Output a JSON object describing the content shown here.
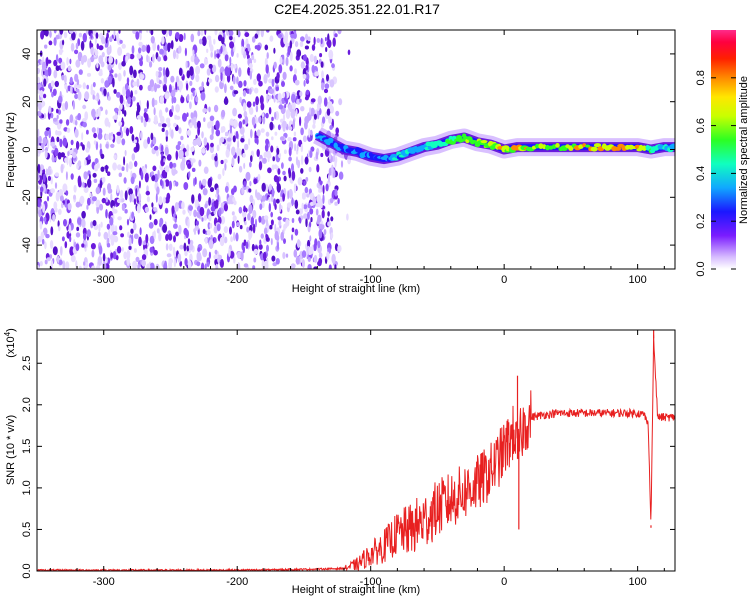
{
  "page": {
    "title": "C2E4.2025.351.22.01.R17"
  },
  "colors": {
    "spectrogram_base": "#6a1bdc",
    "spectrogram_light": "#d8c6ff",
    "snr_line": "#e82020",
    "colorbar_stops": [
      "#ffffff",
      "#c9a7ff",
      "#7a1cff",
      "#0a18ff",
      "#14c8ff",
      "#12ff8a",
      "#7dff0a",
      "#f7ff00",
      "#ffb000",
      "#ff2a00",
      "#ff0030",
      "#ff1b78"
    ]
  },
  "chart_data": [
    {
      "type": "heatmap",
      "name": "spectrogram",
      "title": "C2E4.2025.351.22.01.R17",
      "xlabel": "Height of straight line (km)",
      "ylabel": "Frequency (Hz)",
      "xlim": [
        -350,
        128
      ],
      "ylim": [
        -50,
        50
      ],
      "x_ticks": [
        -300,
        -200,
        -100,
        0,
        100
      ],
      "x_tick_labels": [
        "-300",
        "-200",
        "-100",
        "0",
        "100"
      ],
      "y_ticks": [
        -40,
        -20,
        0,
        20,
        40
      ],
      "y_tick_labels": [
        "-40",
        "-20",
        "0",
        "20",
        "40"
      ],
      "noise_region": {
        "x_from": -350,
        "x_to": -125,
        "freq_from": -50,
        "freq_to": 50
      },
      "signal_trace": {
        "x": [
          -140,
          -130,
          -120,
          -110,
          -100,
          -90,
          -80,
          -70,
          -60,
          -50,
          -40,
          -30,
          -20,
          -10,
          0,
          10,
          20,
          40,
          60,
          80,
          100,
          110,
          120,
          128
        ],
        "freq": [
          6,
          3,
          0,
          -1,
          -3,
          -4,
          -3,
          -1,
          1,
          2,
          4,
          5,
          3,
          2,
          0,
          1,
          1,
          1,
          1,
          1,
          1,
          0,
          1,
          1
        ],
        "amplitude": [
          0.45,
          0.55,
          0.5,
          0.5,
          0.45,
          0.5,
          0.55,
          0.6,
          0.6,
          0.65,
          0.7,
          0.75,
          0.8,
          0.8,
          0.85,
          0.85,
          0.8,
          0.8,
          0.85,
          0.9,
          0.9,
          0.7,
          0.6,
          0.55
        ]
      },
      "colorbar": {
        "label": "Normalized spectral amplitude",
        "range": [
          0,
          1
        ],
        "ticks": [
          0.0,
          0.2,
          0.4,
          0.6,
          0.8
        ],
        "tick_labels": [
          "0.0",
          "0.2",
          "0.4",
          "0.6",
          "0.8"
        ]
      }
    },
    {
      "type": "line",
      "name": "snr",
      "xlabel": "Height of straight line (km)",
      "ylabel": "SNR (10 * v/v)",
      "y_multiplier": "(x10",
      "y_multiplier_exp": "4",
      "y_multiplier_close": ")",
      "xlim": [
        -350,
        128
      ],
      "ylim": [
        0,
        2.9
      ],
      "x_ticks": [
        -300,
        -200,
        -100,
        0,
        100
      ],
      "x_tick_labels": [
        "-300",
        "-200",
        "-100",
        "0",
        "100"
      ],
      "y_ticks": [
        0.0,
        0.5,
        1.0,
        1.5,
        2.0,
        2.5
      ],
      "y_tick_labels": [
        "0.0",
        "0.5",
        "1.0",
        "1.5",
        "2.0",
        "2.5"
      ],
      "series": [
        {
          "name": "SNR",
          "x": [
            -350,
            -300,
            -250,
            -200,
            -150,
            -120,
            -110,
            -100,
            -90,
            -80,
            -70,
            -60,
            -50,
            -40,
            -30,
            -20,
            -10,
            0,
            5,
            8,
            10,
            12,
            15,
            20,
            30,
            40,
            50,
            60,
            70,
            80,
            90,
            100,
            105,
            108,
            110,
            112,
            115,
            120,
            128
          ],
          "y": [
            0.01,
            0.01,
            0.01,
            0.01,
            0.02,
            0.03,
            0.08,
            0.2,
            0.3,
            0.45,
            0.5,
            0.6,
            0.75,
            0.85,
            0.95,
            1.05,
            1.2,
            1.45,
            1.6,
            1.7,
            1.35,
            1.6,
            1.75,
            1.85,
            1.88,
            1.9,
            1.9,
            1.9,
            1.9,
            1.9,
            1.9,
            1.9,
            1.88,
            1.75,
            0.55,
            2.8,
            1.85,
            1.85,
            1.85
          ]
        }
      ],
      "spikes": [
        {
          "x": 10,
          "y": 2.35
        },
        {
          "x": 11,
          "y": 0.5
        },
        {
          "x": 110,
          "y": 0.52
        },
        {
          "x": 112,
          "y": 2.9
        }
      ]
    }
  ]
}
